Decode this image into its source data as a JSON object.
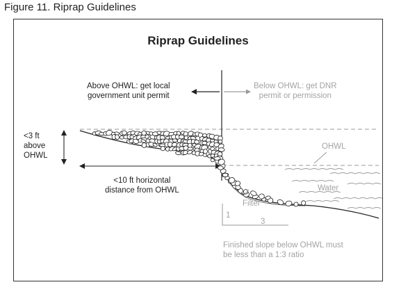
{
  "figure_caption": "Figure 11. Riprap Guidelines",
  "diagram": {
    "title": "Riprap Guidelines",
    "above_ohwl": {
      "line1": "Above OHWL: get local",
      "line2": "government unit permit"
    },
    "below_ohwl": {
      "line1": "Below OHWL: get DNR",
      "line2": "permit or permission"
    },
    "height_limit": {
      "line1": "<3 ft",
      "line2": "above",
      "line3": "OHWL"
    },
    "horizontal_limit": {
      "line1": "<10 ft horizontal",
      "line2": "distance from OHWL"
    },
    "ohwl_label": "OHWL",
    "water_label": "Water",
    "filter_label": "Filter",
    "slope_rise": "1",
    "slope_run": "3",
    "slope_note": {
      "line1": "Finished slope below OHWL must",
      "line2": "be less than a 1:3 ratio"
    }
  },
  "colors": {
    "ink": "#222222",
    "muted": "#a3a3a3",
    "water_line": "#9a9a9a"
  }
}
